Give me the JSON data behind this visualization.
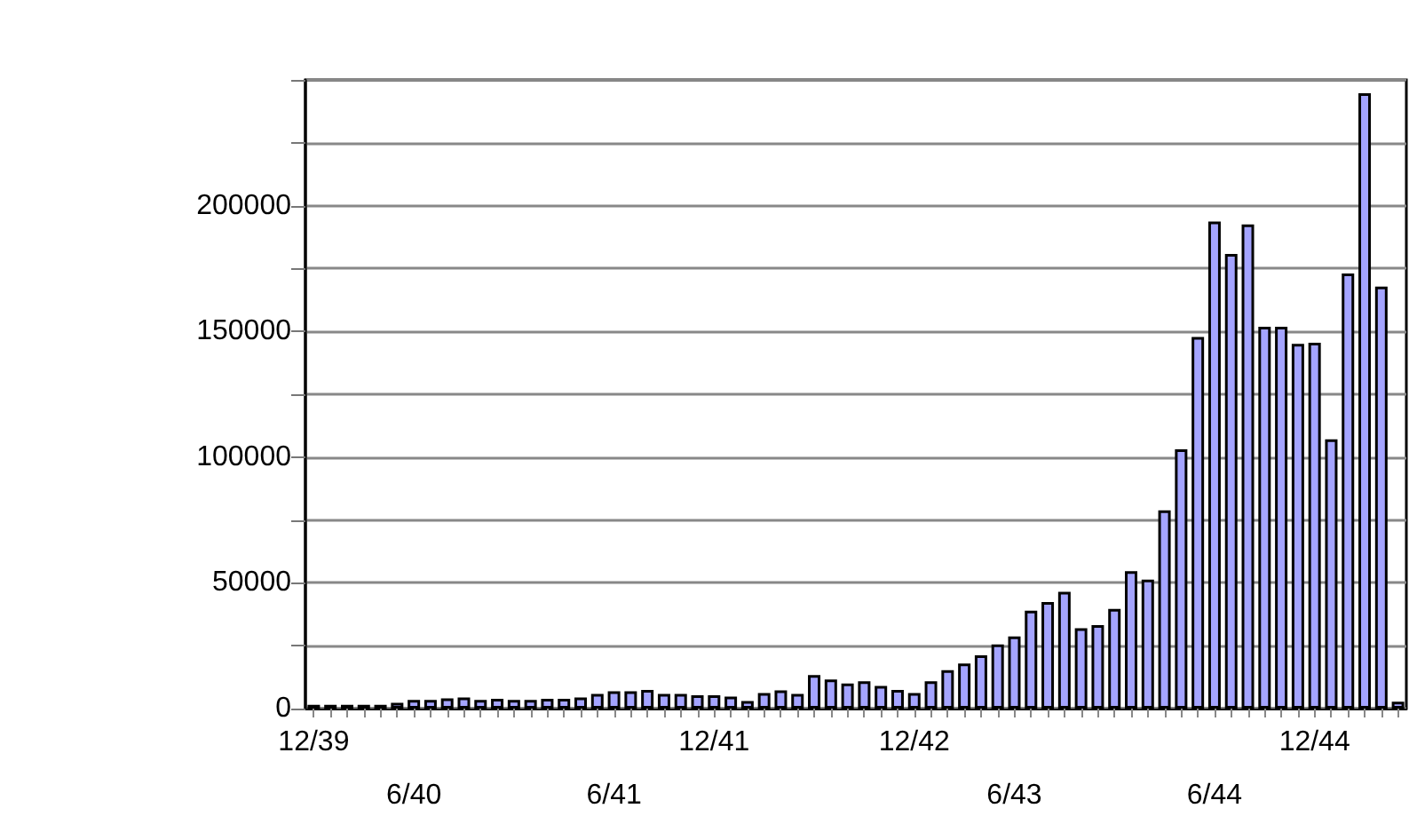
{
  "chart_data": {
    "type": "bar",
    "categories": [
      "12/39",
      null,
      null,
      null,
      null,
      null,
      "6/40",
      null,
      null,
      null,
      null,
      null,
      null,
      null,
      null,
      null,
      null,
      null,
      "6/41",
      null,
      null,
      null,
      null,
      null,
      "12/41",
      null,
      null,
      null,
      null,
      null,
      null,
      null,
      null,
      null,
      null,
      null,
      "12/42",
      null,
      null,
      null,
      null,
      null,
      "6/43",
      null,
      null,
      null,
      null,
      null,
      null,
      null,
      null,
      null,
      null,
      null,
      "6/44",
      null,
      null,
      null,
      null,
      null,
      "12/44",
      null,
      null,
      null,
      null,
      null
    ],
    "values": [
      1500,
      1500,
      1500,
      1500,
      1500,
      2300,
      3400,
      3400,
      4100,
      4400,
      3400,
      3900,
      3400,
      3400,
      3900,
      3900,
      4400,
      5800,
      6900,
      6900,
      7400,
      5800,
      5800,
      5300,
      5300,
      4800,
      3000,
      6200,
      7200,
      5800,
      13300,
      11600,
      10000,
      10900,
      9000,
      7400,
      6200,
      10900,
      15300,
      17900,
      21200,
      25500,
      28700,
      38900,
      42400,
      46400,
      32000,
      33200,
      39600,
      54600,
      51300,
      78800,
      103100,
      147800,
      193700,
      180800,
      192500,
      151800,
      151800,
      145000,
      145500,
      107100,
      173000,
      244700,
      167800,
      2700
    ],
    "color": "#a4a4ff",
    "ylim": [
      0,
      250000
    ],
    "yticks": [
      0,
      {
        "value": 25000,
        "label": null
      },
      50000,
      {
        "value": 75000,
        "label": null
      },
      100000,
      {
        "value": 125000,
        "label": null
      },
      150000,
      {
        "value": 175000,
        "label": null
      },
      200000,
      {
        "value": 225000,
        "label": null
      },
      {
        "value": 250000,
        "label": null
      }
    ],
    "grid": "y"
  }
}
